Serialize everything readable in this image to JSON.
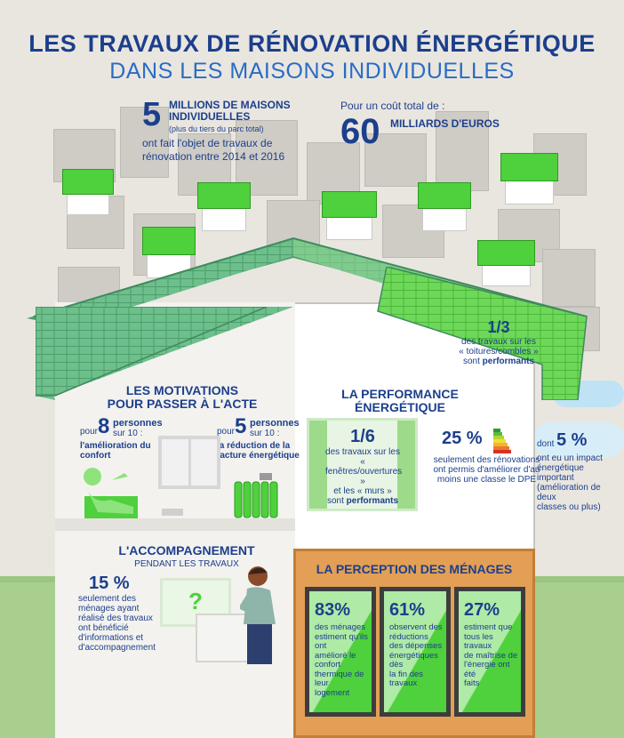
{
  "title": {
    "line1": "LES TRAVAUX DE RÉNOVATION ÉNERGÉTIQUE",
    "line2": "DANS LES MAISONS INDIVIDUELLES"
  },
  "stat_houses": {
    "number": "5",
    "headline1": "MILLIONS DE MAISONS",
    "headline2": "INDIVIDUELLES",
    "note": "(plus du tiers du parc total)",
    "line1": "ont fait l'objet de travaux de",
    "line2": "rénovation entre 2014 et 2016"
  },
  "stat_cost": {
    "intro": "Pour un coût total de :",
    "number": "60",
    "label": "MILLIARDS D'EUROS"
  },
  "roof_stat": {
    "value": "1/3",
    "line1": "des travaux sur les",
    "line2": "« toitures/combles »",
    "line3_prefix": "sont ",
    "line3_bold": "performants"
  },
  "motivations": {
    "heading1": "LES MOTIVATIONS",
    "heading2": "POUR PASSER À L'ACTE",
    "left": {
      "pour": "pour",
      "number": "8",
      "unit1": "personnes",
      "unit2": "sur 10 :",
      "label1": "l'amélioration du",
      "label2": "confort"
    },
    "right": {
      "pour": "pour",
      "number": "5",
      "unit1": "personnes",
      "unit2": "sur 10 :",
      "label1": "la réduction de la",
      "label2": "facture énergétique"
    }
  },
  "performance": {
    "heading1": "LA PERFORMANCE",
    "heading2": "ÉNERGÉTIQUE",
    "windows_stat": {
      "value": "1/6",
      "line1": "des travaux sur les",
      "line2": "« fenêtres/ouvertures »",
      "line3": "et les « murs »",
      "line4_prefix": "sont ",
      "line4_bold": "performants"
    },
    "dpe_stat": {
      "value": "25 %",
      "line1": "seulement des rénovations",
      "line2": "ont permis d'améliorer d'au",
      "line3": "moins une classe le DPE"
    },
    "impact_stat": {
      "prefix": "dont",
      "value": "5 %",
      "line1": "ont eu un impact",
      "line2": "énergétique important",
      "line3": "(amélioration de deux",
      "line4": "classes ou plus)"
    }
  },
  "accompagnement": {
    "heading1": "L'ACCOMPAGNEMENT",
    "heading2": "PENDANT LES TRAVAUX",
    "value": "15 %",
    "lines": [
      "seulement des",
      "ménages ayant",
      "réalisé des travaux",
      "ont bénéficié",
      "d'informations et",
      "d'accompagnement"
    ],
    "sign": "?"
  },
  "perception": {
    "heading": "LA PERCEPTION DES MÉNAGES",
    "items": [
      {
        "value": "83%",
        "lines": [
          "des ménages",
          "estiment qu'ils ont",
          "amélioré le confort",
          "thermique de leur",
          "logement"
        ]
      },
      {
        "value": "61%",
        "lines": [
          "observent des",
          "réductions",
          "des dépenses",
          "énergétiques dès",
          "la fin des travaux"
        ]
      },
      {
        "value": "27%",
        "lines": [
          "estiment que",
          "tous les travaux",
          "de maîtrise de",
          "l'énergie ont été",
          "faits"
        ]
      }
    ]
  },
  "colors": {
    "dark_blue": "#1c3f8c",
    "light_blue": "#2a6cc4",
    "green": "#4ed13c",
    "roof_green": "#6dbf8c",
    "orange": "#e29f55"
  }
}
